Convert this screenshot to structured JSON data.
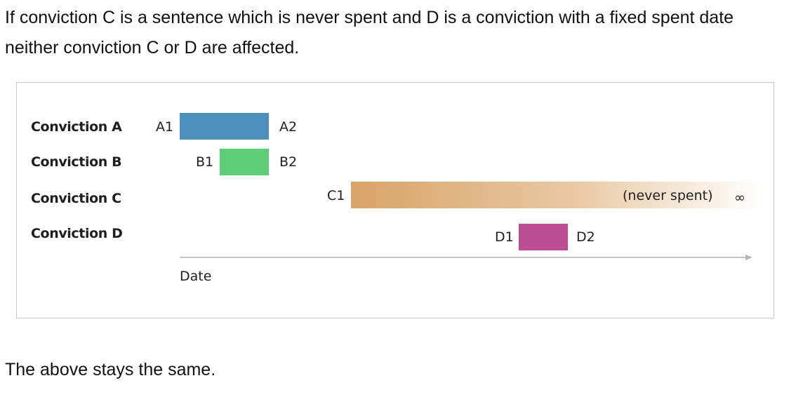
{
  "intro": {
    "line1": "If conviction C is a sentence which is never spent and D is a conviction with a fixed spent date",
    "line2": "neither conviction C or D are affected."
  },
  "diagram": {
    "rows": [
      {
        "label": "Conviction A",
        "start_label": "A1",
        "end_label": "A2",
        "color": "#4e90bd"
      },
      {
        "label": "Conviction B",
        "start_label": "B1",
        "end_label": "B2",
        "color": "#5ecd78"
      },
      {
        "label": "Conviction C",
        "start_label": "C1",
        "end_label": "(never spent)",
        "color": "#d9a368"
      },
      {
        "label": "Conviction D",
        "start_label": "D1",
        "end_label": "D2",
        "color": "#bb4e93"
      }
    ],
    "infinity": "∞",
    "axis_label": "Date"
  },
  "outro": {
    "text": "The above stays the same."
  }
}
